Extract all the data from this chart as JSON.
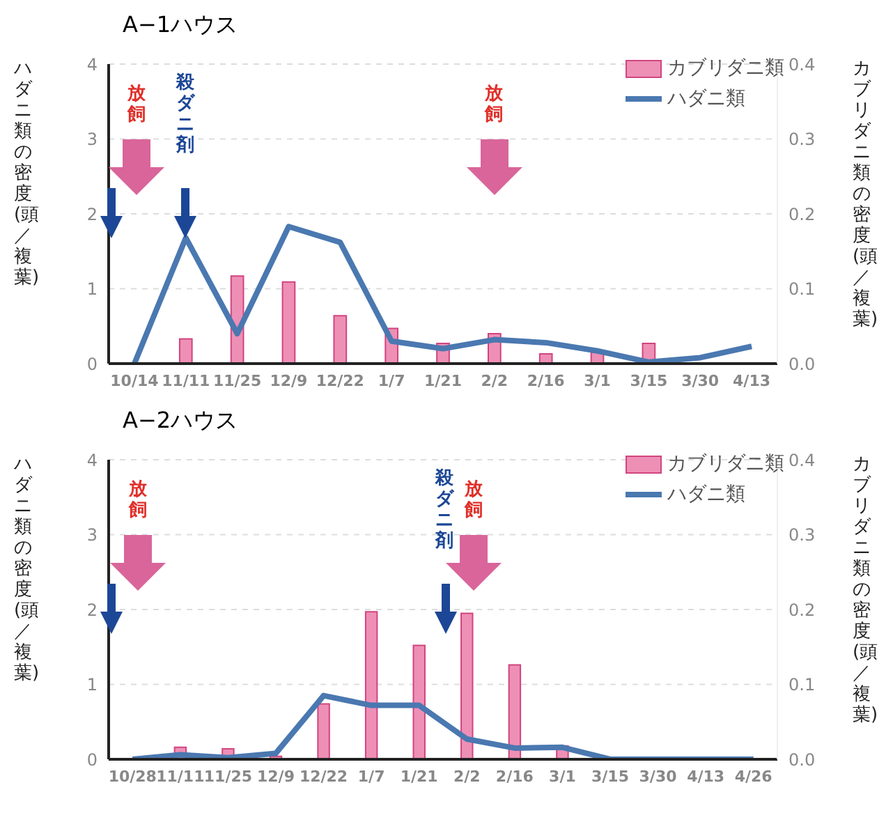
{
  "chart_data": [
    {
      "type": "bar",
      "title": "A−1ハウス",
      "ylabel": "ハダニ類の密度(頭／複葉)",
      "y2label": "カブリダニ類の密度(頭／複葉)",
      "categories": [
        "10/14",
        "11/11",
        "11/25",
        "12/9",
        "12/22",
        "1/7",
        "1/21",
        "2/2",
        "2/16",
        "3/1",
        "3/15",
        "3/30",
        "4/13"
      ],
      "series": [
        {
          "name": "カブリダニ類",
          "axis": "y2",
          "color": "#ee8fb6",
          "values": [
            null,
            0.033,
            0.117,
            0.109,
            0.064,
            0.047,
            0.027,
            0.04,
            0.013,
            0.015,
            0.027,
            null,
            null
          ]
        },
        {
          "name": "ハダニ類",
          "type": "line",
          "color": "#4a78b0",
          "marker": "none",
          "values": [
            0,
            1.68,
            0.4,
            1.83,
            1.62,
            0.3,
            0.2,
            0.32,
            0.28,
            0.17,
            0.02,
            0.08,
            0.23
          ]
        }
      ],
      "ylim": [
        0,
        4
      ],
      "yticks": [
        0,
        1,
        2,
        3,
        4
      ],
      "y2lim": [
        0,
        0.4
      ],
      "y2ticks": [
        {
          "value": 0,
          "label": "0.0"
        },
        0.1,
        0.2,
        0.3,
        0.4
      ],
      "grid": "y",
      "legend": "top right",
      "annotations": [
        "放飼",
        "殺ダニ剤",
        "放飼"
      ]
    },
    {
      "type": "bar",
      "title": "A−2ハウス",
      "ylabel": "ハダニ類の密度(頭／複葉)",
      "y2label": "カブリダニ類の密度(頭／複葉)",
      "categories": [
        "10/28",
        "11/11",
        "11/25",
        "12/9",
        "12/22",
        "1/7",
        "1/21",
        "2/2",
        "2/16",
        "3/1",
        "3/15",
        "3/30",
        "4/13",
        "4/26"
      ],
      "series": [
        {
          "name": "カブリダニ類",
          "axis": "y2",
          "color": "#ee8fb6",
          "values": [
            null,
            0.016,
            0.014,
            0.004,
            0.074,
            0.197,
            0.152,
            0.195,
            0.126,
            0.018,
            null,
            null,
            null,
            null
          ]
        },
        {
          "name": "ハダニ類",
          "type": "line",
          "color": "#4a78b0",
          "marker": "none",
          "values": [
            0,
            0.06,
            0.02,
            0.08,
            0.85,
            0.72,
            0.72,
            0.27,
            0.15,
            0.16,
            0,
            0,
            0,
            0
          ]
        }
      ],
      "ylim": [
        0,
        4
      ],
      "yticks": [
        0,
        1,
        2,
        3,
        4
      ],
      "y2lim": [
        0,
        0.4
      ],
      "y2ticks": [
        {
          "value": 0,
          "label": "0.0"
        },
        0.1,
        0.2,
        0.3,
        0.4
      ],
      "grid": "y",
      "legend": "top right",
      "annotations": [
        "放飼",
        "殺ダニ剤",
        "放飼"
      ]
    }
  ]
}
